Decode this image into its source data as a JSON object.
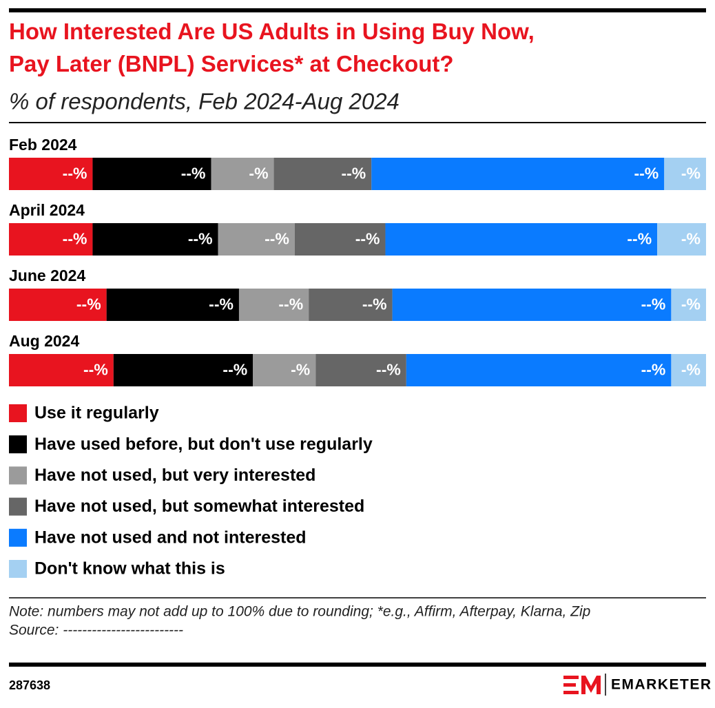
{
  "chart_data": {
    "type": "bar",
    "orientation": "horizontal",
    "stacked": true,
    "title": "How Interested Are US Adults in Using Buy Now, Pay Later (BNPL) Services* at Checkout?",
    "subtitle": "% of respondents, Feb 2024-Aug 2024",
    "categories": [
      "Feb 2024",
      "April 2024",
      "June 2024",
      "Aug 2024"
    ],
    "xlim": [
      0,
      100
    ],
    "series": [
      {
        "name": "Use it regularly",
        "color": "#e8141f",
        "values": [
          12,
          12,
          14,
          15
        ],
        "value_labels": [
          "--%",
          "--%",
          "--%",
          "--%"
        ]
      },
      {
        "name": "Have used before, but don't use regularly",
        "color": "#000000",
        "values": [
          17,
          18,
          19,
          20
        ],
        "value_labels": [
          "--%",
          "--%",
          "--%",
          "--%"
        ]
      },
      {
        "name": "Have not used, but very interested",
        "color": "#9b9b9b",
        "values": [
          9,
          11,
          10,
          9
        ],
        "value_labels": [
          "-%",
          "--%",
          "--%",
          "-%"
        ]
      },
      {
        "name": "Have not used, but somewhat interested",
        "color": "#666666",
        "values": [
          14,
          13,
          12,
          13
        ],
        "value_labels": [
          "--%",
          "--%",
          "--%",
          "--%"
        ]
      },
      {
        "name": "Have not used and not interested",
        "color": "#0a7bff",
        "values": [
          42,
          39,
          40,
          38
        ],
        "value_labels": [
          "--%",
          "--%",
          "--%",
          "--%"
        ]
      },
      {
        "name": "Don't know what this is",
        "color": "#a4d0f2",
        "values": [
          6,
          7,
          5,
          5
        ],
        "value_labels": [
          "-%",
          "-%",
          "-%",
          "-%"
        ]
      }
    ],
    "note": "Note: numbers may not add up to 100% due to rounding; *e.g., Affirm, Afterpay, Klarna, Zip",
    "source": "Source: -------------------------",
    "chart_id": "287638",
    "brand": "EMARKETER"
  }
}
